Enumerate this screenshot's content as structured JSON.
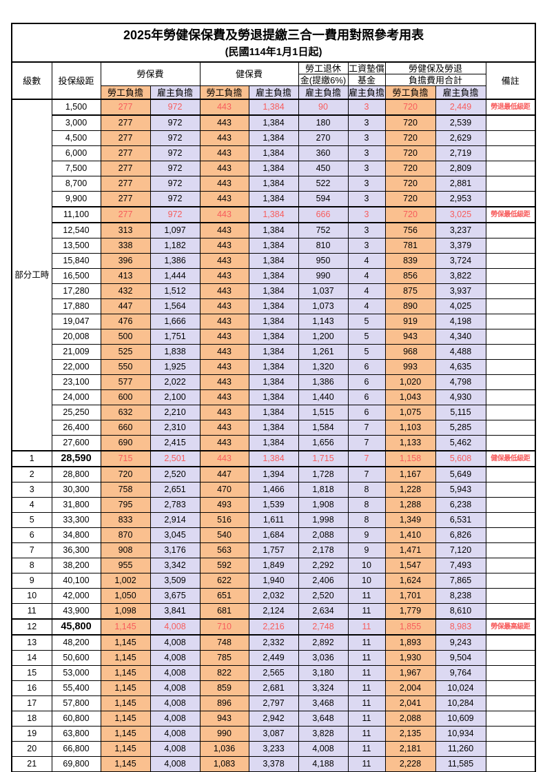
{
  "title": "2025年勞健保保費及勞退提繳三合一費用對照參考用表",
  "subtitle": "(民國114年1月1日起)",
  "columns": {
    "level": "級數",
    "bracket": "投保級距",
    "labor_fee": "勞保費",
    "health_fee": "健保費",
    "pension_line1": "勞工退休",
    "pension_line2": "金(提繳6%)",
    "wage_fund_line1": "工資墊償",
    "wage_fund_line2": "基金",
    "total_line1": "勞健保及勞退",
    "total_line2": "負擔費用合計",
    "remark": "備註",
    "employee_share": "勞工負擔",
    "employer_share": "雇主負擔"
  },
  "part_time_label": "部分工時",
  "colors": {
    "employee_bg": "#FAC08F",
    "employer_bg": "#DCD9F2",
    "highlight_text": "#F75C5C",
    "note_text": "#FF4242"
  },
  "rows": [
    {
      "level": "",
      "bracket": "1,500",
      "values": [
        "277",
        "972",
        "443",
        "1,384",
        "90",
        "3",
        "720",
        "2,449"
      ],
      "highlight": true,
      "note": "勞退最低級距"
    },
    {
      "level": "",
      "bracket": "3,000",
      "values": [
        "277",
        "972",
        "443",
        "1,384",
        "180",
        "3",
        "720",
        "2,539"
      ]
    },
    {
      "level": "",
      "bracket": "4,500",
      "values": [
        "277",
        "972",
        "443",
        "1,384",
        "270",
        "3",
        "720",
        "2,629"
      ]
    },
    {
      "level": "",
      "bracket": "6,000",
      "values": [
        "277",
        "972",
        "443",
        "1,384",
        "360",
        "3",
        "720",
        "2,719"
      ]
    },
    {
      "level": "",
      "bracket": "7,500",
      "values": [
        "277",
        "972",
        "443",
        "1,384",
        "450",
        "3",
        "720",
        "2,809"
      ]
    },
    {
      "level": "",
      "bracket": "8,700",
      "values": [
        "277",
        "972",
        "443",
        "1,384",
        "522",
        "3",
        "720",
        "2,881"
      ]
    },
    {
      "level": "",
      "bracket": "9,900",
      "values": [
        "277",
        "972",
        "443",
        "1,384",
        "594",
        "3",
        "720",
        "2,953"
      ]
    },
    {
      "level": "",
      "bracket": "11,100",
      "values": [
        "277",
        "972",
        "443",
        "1,384",
        "666",
        "3",
        "720",
        "3,025"
      ],
      "highlight": true,
      "note": "勞保最低級距"
    },
    {
      "level": "",
      "bracket": "12,540",
      "values": [
        "313",
        "1,097",
        "443",
        "1,384",
        "752",
        "3",
        "756",
        "3,237"
      ]
    },
    {
      "level": "",
      "bracket": "13,500",
      "values": [
        "338",
        "1,182",
        "443",
        "1,384",
        "810",
        "3",
        "781",
        "3,379"
      ]
    },
    {
      "level": "",
      "bracket": "15,840",
      "values": [
        "396",
        "1,386",
        "443",
        "1,384",
        "950",
        "4",
        "839",
        "3,724"
      ]
    },
    {
      "level": "",
      "bracket": "16,500",
      "values": [
        "413",
        "1,444",
        "443",
        "1,384",
        "990",
        "4",
        "856",
        "3,822"
      ]
    },
    {
      "level": "",
      "bracket": "17,280",
      "values": [
        "432",
        "1,512",
        "443",
        "1,384",
        "1,037",
        "4",
        "875",
        "3,937"
      ]
    },
    {
      "level": "",
      "bracket": "17,880",
      "values": [
        "447",
        "1,564",
        "443",
        "1,384",
        "1,073",
        "4",
        "890",
        "4,025"
      ]
    },
    {
      "level": "",
      "bracket": "19,047",
      "values": [
        "476",
        "1,666",
        "443",
        "1,384",
        "1,143",
        "5",
        "919",
        "4,198"
      ]
    },
    {
      "level": "",
      "bracket": "20,008",
      "values": [
        "500",
        "1,751",
        "443",
        "1,384",
        "1,200",
        "5",
        "943",
        "4,340"
      ]
    },
    {
      "level": "",
      "bracket": "21,009",
      "values": [
        "525",
        "1,838",
        "443",
        "1,384",
        "1,261",
        "5",
        "968",
        "4,488"
      ]
    },
    {
      "level": "",
      "bracket": "22,000",
      "values": [
        "550",
        "1,925",
        "443",
        "1,384",
        "1,320",
        "6",
        "993",
        "4,635"
      ]
    },
    {
      "level": "",
      "bracket": "23,100",
      "values": [
        "577",
        "2,022",
        "443",
        "1,384",
        "1,386",
        "6",
        "1,020",
        "4,798"
      ]
    },
    {
      "level": "",
      "bracket": "24,000",
      "values": [
        "600",
        "2,100",
        "443",
        "1,384",
        "1,440",
        "6",
        "1,043",
        "4,930"
      ]
    },
    {
      "level": "",
      "bracket": "25,250",
      "values": [
        "632",
        "2,210",
        "443",
        "1,384",
        "1,515",
        "6",
        "1,075",
        "5,115"
      ]
    },
    {
      "level": "",
      "bracket": "26,400",
      "values": [
        "660",
        "2,310",
        "443",
        "1,384",
        "1,584",
        "7",
        "1,103",
        "5,285"
      ]
    },
    {
      "level": "",
      "bracket": "27,600",
      "values": [
        "690",
        "2,415",
        "443",
        "1,384",
        "1,656",
        "7",
        "1,133",
        "5,462"
      ]
    },
    {
      "level": "1",
      "bracket": "28,590",
      "values": [
        "715",
        "2,501",
        "443",
        "1,384",
        "1,715",
        "7",
        "1,158",
        "5,608"
      ],
      "highlight": true,
      "note": "健保最低級距",
      "big": true
    },
    {
      "level": "2",
      "bracket": "28,800",
      "values": [
        "720",
        "2,520",
        "447",
        "1,394",
        "1,728",
        "7",
        "1,167",
        "5,649"
      ]
    },
    {
      "level": "3",
      "bracket": "30,300",
      "values": [
        "758",
        "2,651",
        "470",
        "1,466",
        "1,818",
        "8",
        "1,228",
        "5,943"
      ]
    },
    {
      "level": "4",
      "bracket": "31,800",
      "values": [
        "795",
        "2,783",
        "493",
        "1,539",
        "1,908",
        "8",
        "1,288",
        "6,238"
      ]
    },
    {
      "level": "5",
      "bracket": "33,300",
      "values": [
        "833",
        "2,914",
        "516",
        "1,611",
        "1,998",
        "8",
        "1,349",
        "6,531"
      ]
    },
    {
      "level": "6",
      "bracket": "34,800",
      "values": [
        "870",
        "3,045",
        "540",
        "1,684",
        "2,088",
        "9",
        "1,410",
        "6,826"
      ]
    },
    {
      "level": "7",
      "bracket": "36,300",
      "values": [
        "908",
        "3,176",
        "563",
        "1,757",
        "2,178",
        "9",
        "1,471",
        "7,120"
      ]
    },
    {
      "level": "8",
      "bracket": "38,200",
      "values": [
        "955",
        "3,342",
        "592",
        "1,849",
        "2,292",
        "10",
        "1,547",
        "7,493"
      ]
    },
    {
      "level": "9",
      "bracket": "40,100",
      "values": [
        "1,002",
        "3,509",
        "622",
        "1,940",
        "2,406",
        "10",
        "1,624",
        "7,865"
      ]
    },
    {
      "level": "10",
      "bracket": "42,000",
      "values": [
        "1,050",
        "3,675",
        "651",
        "2,032",
        "2,520",
        "11",
        "1,701",
        "8,238"
      ]
    },
    {
      "level": "11",
      "bracket": "43,900",
      "values": [
        "1,098",
        "3,841",
        "681",
        "2,124",
        "2,634",
        "11",
        "1,779",
        "8,610"
      ]
    },
    {
      "level": "12",
      "bracket": "45,800",
      "values": [
        "1,145",
        "4,008",
        "710",
        "2,216",
        "2,748",
        "11",
        "1,855",
        "8,983"
      ],
      "highlight": true,
      "note": "勞保最高級距",
      "big": true
    },
    {
      "level": "13",
      "bracket": "48,200",
      "values": [
        "1,145",
        "4,008",
        "748",
        "2,332",
        "2,892",
        "11",
        "1,893",
        "9,243"
      ]
    },
    {
      "level": "14",
      "bracket": "50,600",
      "values": [
        "1,145",
        "4,008",
        "785",
        "2,449",
        "3,036",
        "11",
        "1,930",
        "9,504"
      ]
    },
    {
      "level": "15",
      "bracket": "53,000",
      "values": [
        "1,145",
        "4,008",
        "822",
        "2,565",
        "3,180",
        "11",
        "1,967",
        "9,764"
      ]
    },
    {
      "level": "16",
      "bracket": "55,400",
      "values": [
        "1,145",
        "4,008",
        "859",
        "2,681",
        "3,324",
        "11",
        "2,004",
        "10,024"
      ]
    },
    {
      "level": "17",
      "bracket": "57,800",
      "values": [
        "1,145",
        "4,008",
        "896",
        "2,797",
        "3,468",
        "11",
        "2,041",
        "10,284"
      ]
    },
    {
      "level": "18",
      "bracket": "60,800",
      "values": [
        "1,145",
        "4,008",
        "943",
        "2,942",
        "3,648",
        "11",
        "2,088",
        "10,609"
      ]
    },
    {
      "level": "19",
      "bracket": "63,800",
      "values": [
        "1,145",
        "4,008",
        "990",
        "3,087",
        "3,828",
        "11",
        "2,135",
        "10,934"
      ]
    },
    {
      "level": "20",
      "bracket": "66,800",
      "values": [
        "1,145",
        "4,008",
        "1,036",
        "3,233",
        "4,008",
        "11",
        "2,181",
        "11,260"
      ]
    },
    {
      "level": "21",
      "bracket": "69,800",
      "values": [
        "1,145",
        "4,008",
        "1,083",
        "3,378",
        "4,188",
        "11",
        "2,228",
        "11,585"
      ]
    }
  ],
  "part_time_row_count": 23
}
